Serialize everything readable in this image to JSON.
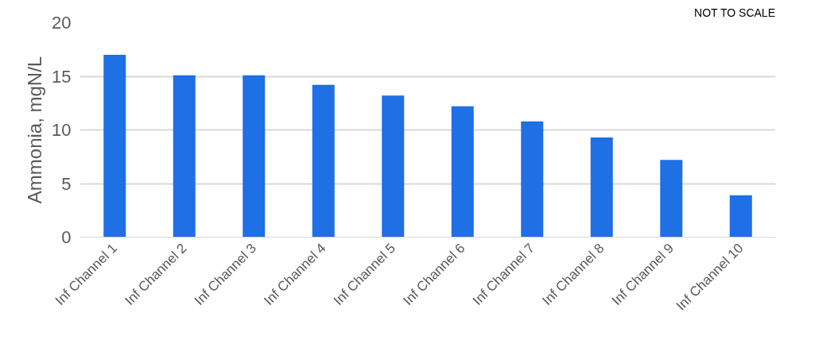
{
  "chart_data": {
    "type": "bar",
    "ylabel": "Ammonia, mgN/L",
    "categories": [
      "Inf Channel 1",
      "Inf Channel 2",
      "Inf Channel 3",
      "Inf Channel 4",
      "Inf Channel 5",
      "Inf Channel 6",
      "Inf Channel 7",
      "Inf Channel 8",
      "Inf Channel 9",
      "Inf Channel 10"
    ],
    "values": [
      17.0,
      15.1,
      15.1,
      14.2,
      13.2,
      12.2,
      10.8,
      9.3,
      7.2,
      3.9
    ],
    "color": "#1f6fe5",
    "ylim": [
      0,
      20
    ],
    "yticks": [
      0,
      5,
      10,
      15,
      20
    ],
    "grid": "y",
    "annotations": [
      "NOT TO SCALE"
    ]
  }
}
